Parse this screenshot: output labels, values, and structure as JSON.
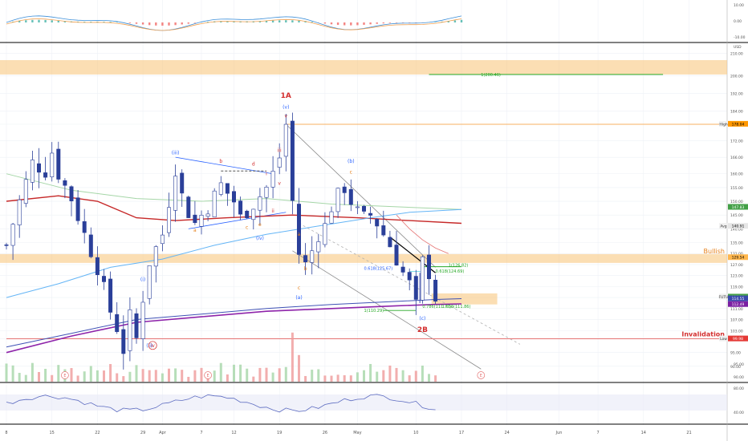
{
  "colors": {
    "background": "#ffffff",
    "grid": "#eef1f6",
    "bull": "#2a3f99",
    "bear": "#2a3f99",
    "wave_red": "#d32f2f",
    "wave_blue": "#2962ff",
    "wave_orange": "#e6801a",
    "zone": "#f8c880",
    "fib_green": "#26a826",
    "ma_red": "#c62828",
    "ma_blue": "#64b5f6",
    "ma_purple": "#8e24aa",
    "ma_indigo": "#3f51b5",
    "volume_up": "#a5d6a7",
    "volume_down": "#ef9a9a",
    "rsi_line": "#5c6bc0",
    "macd_fast": "#3b8ed8",
    "macd_slow": "#f0a050"
  },
  "chart_data": {
    "type": "candlestick",
    "symbol_unit": "USD",
    "y_ticks": [
      90,
      95,
      100,
      103,
      107,
      111,
      115,
      119,
      123,
      127,
      131,
      135,
      140,
      145,
      150,
      155,
      160,
      166,
      172,
      178,
      184,
      192,
      200,
      210
    ],
    "x_ticks": [
      {
        "label": "8",
        "day": 0
      },
      {
        "label": "15",
        "day": 7
      },
      {
        "label": "22",
        "day": 14
      },
      {
        "label": "29",
        "day": 21
      },
      {
        "label": "Apr",
        "day": 24
      },
      {
        "label": "7",
        "day": 30
      },
      {
        "label": "12",
        "day": 35
      },
      {
        "label": "19",
        "day": 42
      },
      {
        "label": "26",
        "day": 49
      },
      {
        "label": "May",
        "day": 54
      },
      {
        "label": "10",
        "day": 63
      },
      {
        "label": "17",
        "day": 70
      },
      {
        "label": "24",
        "day": 77
      },
      {
        "label": "Jun",
        "day": 85
      },
      {
        "label": "7",
        "day": 91
      },
      {
        "label": "14",
        "day": 98
      },
      {
        "label": "21",
        "day": 105
      }
    ],
    "price_keypoints": [
      [
        0,
        134
      ],
      [
        2,
        150
      ],
      [
        4,
        164
      ],
      [
        6,
        161
      ],
      [
        7,
        168
      ],
      [
        8,
        160
      ],
      [
        10,
        151
      ],
      [
        12,
        138
      ],
      [
        14,
        126
      ],
      [
        16,
        110
      ],
      [
        17,
        104
      ],
      [
        18,
        96
      ],
      [
        19,
        108
      ],
      [
        20,
        100
      ],
      [
        21,
        115
      ],
      [
        22,
        128
      ],
      [
        24,
        138
      ],
      [
        25,
        150
      ],
      [
        26,
        162
      ],
      [
        27,
        152
      ],
      [
        28,
        146
      ],
      [
        29,
        142
      ],
      [
        31,
        148
      ],
      [
        33,
        156
      ],
      [
        35,
        150
      ],
      [
        36,
        144
      ],
      [
        38,
        149
      ],
      [
        40,
        155
      ],
      [
        41,
        160
      ],
      [
        42,
        166
      ],
      [
        43,
        178
      ],
      [
        44,
        150
      ],
      [
        45,
        131
      ],
      [
        46,
        127
      ],
      [
        47,
        132
      ],
      [
        48,
        138
      ],
      [
        49,
        141
      ],
      [
        50,
        148
      ],
      [
        51,
        152
      ],
      [
        52,
        155
      ],
      [
        53,
        150
      ],
      [
        54,
        146
      ],
      [
        55,
        144
      ],
      [
        56,
        145
      ],
      [
        57,
        142
      ],
      [
        58,
        138
      ],
      [
        59,
        134
      ],
      [
        60,
        129
      ],
      [
        61,
        124
      ],
      [
        62,
        120
      ],
      [
        63,
        112
      ],
      [
        64,
        128
      ],
      [
        65,
        124
      ],
      [
        66,
        115
      ]
    ],
    "levels": {
      "high": {
        "label": "High",
        "value": "178.04"
      },
      "low": {
        "label": "Low",
        "value": "99.98"
      },
      "avg": {
        "label": "Avg",
        "value": "140.91"
      },
      "current_symbol": "FUTU",
      "current_value": "115.19"
    },
    "price_badges": [
      {
        "text": "178.04",
        "price": 178.04,
        "bg": "#ff9800",
        "fg": "#000000"
      },
      {
        "text": "147.83",
        "price": 147.83,
        "bg": "#43a047",
        "fg": "#ffffff"
      },
      {
        "text": "129.54",
        "price": 129.54,
        "bg": "#ffb74d",
        "fg": "#000000"
      },
      {
        "text": "114.55",
        "price": 114.55,
        "bg": "#3949ab",
        "fg": "#ffffff"
      },
      {
        "text": "112.49",
        "price": 112.49,
        "bg": "#7b1fa2",
        "fg": "#ffffff"
      },
      {
        "text": "99.98",
        "price": 99.98,
        "bg": "#e53935",
        "fg": "#ffffff"
      }
    ],
    "zones": [
      {
        "name": "upper-zone",
        "price_top": 207,
        "price_bottom": 200.5
      },
      {
        "name": "bullish-zone",
        "price_top": 130.8,
        "price_bottom": 127.6
      },
      {
        "name": "fib-zone",
        "price_top": 116.5,
        "price_bottom": 112.5
      }
    ],
    "zone_labels": {
      "bullish": "Bullish",
      "invalidation": "Invalidation"
    },
    "fib_labels": [
      {
        "text": "1(200.46)",
        "day": 73,
        "price": 200.46
      },
      {
        "text": "1(126.82)",
        "day": 68,
        "price": 126.82
      },
      {
        "text": "0.618(124.69)",
        "day": 66,
        "price": 124.69
      },
      {
        "text": "0.618(125.67)",
        "day": 55,
        "price": 125.67
      },
      {
        "text": "0.786(111.77)",
        "day": 64,
        "price": 111.77
      },
      {
        "text": "1.618(111.86)",
        "day": 67,
        "price": 111.86
      },
      {
        "text": "1(110.29)",
        "day": 55,
        "price": 110.29
      }
    ],
    "wave_labels": [
      {
        "text": "1A",
        "day": 43,
        "price": 190,
        "color": "wave_red",
        "bold": true
      },
      {
        "text": "(v)",
        "day": 43,
        "price": 185,
        "color": "wave_blue"
      },
      {
        "text": "v",
        "day": 43,
        "price": 181,
        "color": "wave_red"
      },
      {
        "text": "iii",
        "day": 42,
        "price": 168,
        "color": "wave_red"
      },
      {
        "text": "(iii)",
        "day": 26,
        "price": 167,
        "color": "wave_blue"
      },
      {
        "text": "b",
        "day": 33,
        "price": 164,
        "color": "wave_red"
      },
      {
        "text": "d",
        "day": 38,
        "price": 163,
        "color": "wave_red"
      },
      {
        "text": "i",
        "day": 40,
        "price": 159.5,
        "color": "wave_red"
      },
      {
        "text": "v",
        "day": 42,
        "price": 156,
        "color": "wave_red"
      },
      {
        "text": "ii",
        "day": 41,
        "price": 146,
        "color": "wave_red"
      },
      {
        "text": "a",
        "day": 29,
        "price": 139,
        "color": "wave_orange"
      },
      {
        "text": "c",
        "day": 37,
        "price": 140,
        "color": "wave_orange"
      },
      {
        "text": "e",
        "day": 39,
        "price": 141,
        "color": "wave_orange"
      },
      {
        "text": "(iv)",
        "day": 39,
        "price": 136,
        "color": "wave_blue"
      },
      {
        "text": "a",
        "day": 45,
        "price": 137.5,
        "color": "wave_orange"
      },
      {
        "text": "b",
        "day": 46,
        "price": 125,
        "color": "wave_orange"
      },
      {
        "text": "c",
        "day": 45,
        "price": 118,
        "color": "wave_orange"
      },
      {
        "text": "(a)",
        "day": 45,
        "price": 114.5,
        "color": "wave_blue"
      },
      {
        "text": "(b)",
        "day": 53,
        "price": 164,
        "color": "wave_blue"
      },
      {
        "text": "c",
        "day": 53,
        "price": 160,
        "color": "wave_orange"
      },
      {
        "text": "(i)",
        "day": 21,
        "price": 121,
        "color": "wave_blue"
      },
      {
        "text": "(ii)",
        "day": 22,
        "price": 97,
        "color": "wave_blue"
      },
      {
        "text": "iv",
        "day": 22.5,
        "price": 97,
        "color": "wave_red",
        "circled": true
      },
      {
        "text": "(c)",
        "day": 64,
        "price": 106.8,
        "color": "wave_blue"
      },
      {
        "text": "2B",
        "day": 64,
        "price": 102.5,
        "color": "wave_red",
        "bold": true
      }
    ],
    "event_markers": [
      {
        "text": "E",
        "pane": "volume",
        "day": 9
      },
      {
        "text": "E",
        "pane": "volume",
        "day": 31
      },
      {
        "text": "E",
        "pane": "volume",
        "day": 73
      }
    ],
    "volume_axis": [
      {
        "label": "95.00",
        "value": 95
      },
      {
        "label": "90.00",
        "value": 90
      }
    ],
    "macd_axis": [
      {
        "label": "10.00",
        "value": 10
      },
      {
        "label": "0.00",
        "value": 0
      },
      {
        "label": "-10.00",
        "value": -10
      }
    ],
    "rsi_axis": [
      {
        "label": "80.00",
        "value": 80
      },
      {
        "label": "40.00",
        "value": 40
      }
    ]
  }
}
